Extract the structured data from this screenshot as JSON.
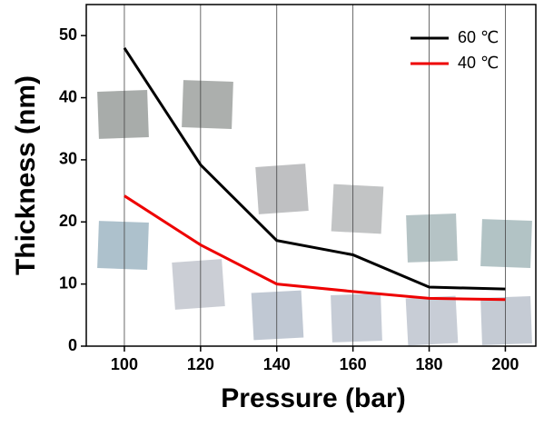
{
  "chart_data": {
    "type": "line",
    "x_label": "Pressure (bar)",
    "y_label": "Thickness (nm)",
    "x": [
      100,
      120,
      140,
      160,
      180,
      200
    ],
    "series": [
      {
        "name": "60 ℃",
        "color": "#000000",
        "values": [
          48,
          29.2,
          17,
          14.7,
          9.5,
          9.2
        ]
      },
      {
        "name": "40 ℃",
        "color": "#ee0000",
        "values": [
          24.2,
          16.3,
          10,
          8.8,
          7.7,
          7.5
        ]
      }
    ],
    "xlim": [
      90,
      208
    ],
    "ylim": [
      0,
      55
    ],
    "xticks": [
      100,
      120,
      140,
      160,
      180,
      200
    ],
    "yticks": [
      0,
      10,
      20,
      30,
      40,
      50
    ],
    "grid": "x",
    "legend": "top-right"
  }
}
